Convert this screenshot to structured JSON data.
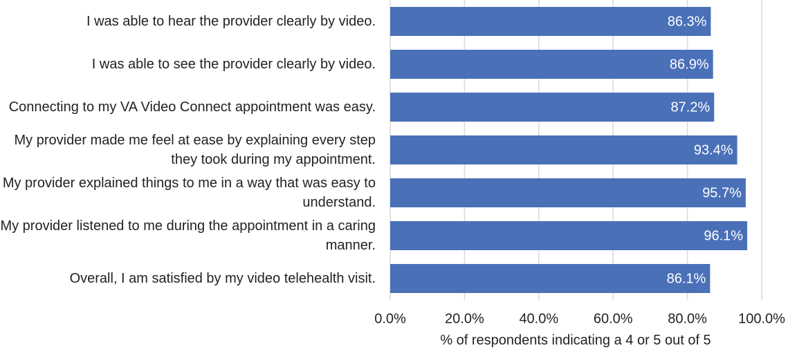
{
  "chart_data": {
    "type": "bar",
    "orientation": "horizontal",
    "categories": [
      "I was able to hear the provider clearly by video.",
      "I was able to see the provider clearly by video.",
      "Connecting to my VA Video Connect appointment was easy.",
      "My provider made me feel at ease by explaining every step they took during my appointment.",
      "My provider explained things to me in a way that was easy to understand.",
      "My provider listened to me during the appointment in a caring manner.",
      "Overall, I am satisfied by my video telehealth visit."
    ],
    "values": [
      86.3,
      86.9,
      87.2,
      93.4,
      95.7,
      96.1,
      86.1
    ],
    "value_labels": [
      "86.3%",
      "86.9%",
      "87.2%",
      "93.4%",
      "95.7%",
      "96.1%",
      "86.1%"
    ],
    "color": "#4a70b8",
    "xlim": [
      0,
      100
    ],
    "xticks": [
      {
        "value": 0,
        "label": "0.0%"
      },
      {
        "value": 20,
        "label": "20.0%"
      },
      {
        "value": 40,
        "label": "40.0%"
      },
      {
        "value": 60,
        "label": "60.0%"
      },
      {
        "value": 80,
        "label": "80.0%"
      },
      {
        "value": 100,
        "label": "100.0%"
      }
    ],
    "xlabel": "% of respondents indicating a 4 or 5 out of 5",
    "grid": true
  }
}
